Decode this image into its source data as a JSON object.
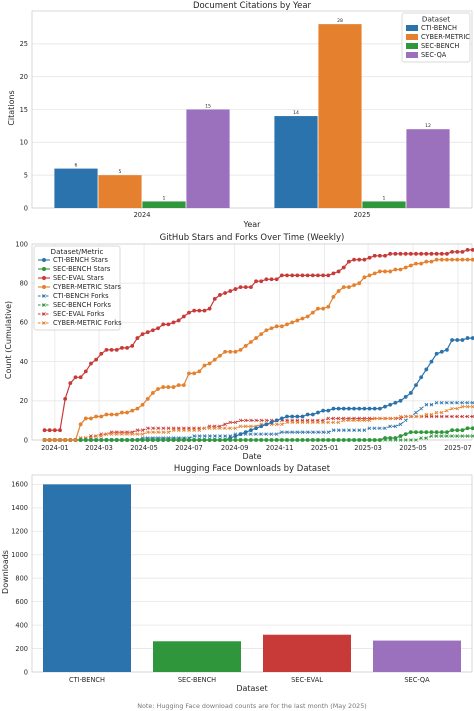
{
  "colors": {
    "blue": "#2b73ad",
    "orange": "#e5812e",
    "green": "#2f963c",
    "red": "#c83a37",
    "purple": "#9b70bd"
  },
  "chart_data": [
    {
      "type": "bar",
      "title": "Document Citations by Year",
      "xlabel": "Year",
      "ylabel": "Citations",
      "categories": [
        "2024",
        "2025"
      ],
      "ylim": [
        0,
        30
      ],
      "yticks": [
        0,
        5,
        10,
        15,
        20,
        25
      ],
      "legend": {
        "title": "Dataset",
        "placement": "top-right"
      },
      "series": [
        {
          "name": "CTI-BENCH",
          "color": "#2b73ad",
          "values": [
            6,
            14
          ]
        },
        {
          "name": "CYBER-METRIC",
          "color": "#e5812e",
          "values": [
            5,
            28
          ]
        },
        {
          "name": "SEC-BENCH",
          "color": "#2f963c",
          "values": [
            1,
            1
          ]
        },
        {
          "name": "SEC-QA",
          "color": "#9b70bd",
          "values": [
            15,
            12
          ]
        }
      ]
    },
    {
      "type": "line",
      "title": "GitHub Stars and Forks Over Time (Weekly)",
      "xlabel": "Date",
      "ylabel": "Count (Cumulative)",
      "ylim": [
        0,
        100
      ],
      "yticks": [
        0,
        20,
        40,
        60,
        80,
        100
      ],
      "xlim": [
        "2023-12-01",
        "2025-07-20"
      ],
      "xticks": [
        "2024-01",
        "2024-03",
        "2024-05",
        "2024-07",
        "2024-09",
        "2024-11",
        "2025-01",
        "2025-03",
        "2025-05",
        "2025-07"
      ],
      "x_start": "2023-12-18",
      "x_step_days": 7,
      "legend": {
        "title": "Dataset/Metric",
        "placement": "top-left"
      },
      "series": [
        {
          "name": "CTI-BENCH Stars",
          "color": "#2b73ad",
          "style": "solid-dot",
          "values": [
            0,
            0,
            0,
            0,
            0,
            0,
            0,
            0,
            0,
            0,
            0,
            0,
            0,
            0,
            0,
            0,
            0,
            0,
            0,
            0,
            0,
            0,
            0,
            0,
            0,
            0,
            0,
            0,
            0,
            0,
            0,
            0,
            0,
            0,
            0,
            0,
            1,
            2,
            3,
            4,
            5,
            6,
            7,
            8,
            9,
            10,
            11,
            12,
            12,
            12,
            12,
            13,
            13,
            14,
            15,
            15,
            16,
            16,
            16,
            16,
            16,
            16,
            16,
            16,
            16,
            16,
            17,
            18,
            19,
            20,
            22,
            24,
            28,
            32,
            36,
            40,
            44,
            45,
            46,
            51,
            51,
            51,
            52,
            52
          ]
        },
        {
          "name": "SEC-BENCH Stars",
          "color": "#2f963c",
          "style": "solid-dot",
          "values": [
            0,
            0,
            0,
            0,
            0,
            0,
            0,
            0,
            0,
            0,
            0,
            0,
            0,
            0,
            0,
            0,
            0,
            0,
            0,
            0,
            0,
            0,
            0,
            0,
            0,
            0,
            0,
            0,
            0,
            0,
            0,
            0,
            0,
            0,
            0,
            0,
            0,
            0,
            0,
            0,
            0,
            0,
            0,
            0,
            0,
            0,
            0,
            0,
            0,
            0,
            0,
            0,
            0,
            0,
            0,
            0,
            0,
            0,
            0,
            0,
            0,
            0,
            0,
            0,
            0,
            0,
            1,
            1,
            1,
            2,
            3,
            4,
            4,
            4,
            4,
            4,
            4,
            4,
            4,
            5,
            5,
            5,
            6,
            6
          ]
        },
        {
          "name": "SEC-EVAL Stars",
          "color": "#c83a37",
          "style": "solid-dot",
          "values": [
            5,
            5,
            5,
            5,
            21,
            29,
            32,
            32,
            35,
            39,
            41,
            44,
            46,
            46,
            46,
            47,
            47,
            48,
            52,
            54,
            55,
            56,
            57,
            59,
            59,
            60,
            61,
            63,
            65,
            66,
            66,
            66,
            67,
            72,
            74,
            75,
            76,
            77,
            78,
            78,
            78,
            81,
            81,
            82,
            82,
            82,
            84,
            84,
            84,
            84,
            84,
            84,
            84,
            84,
            84,
            84,
            85,
            86,
            88,
            91,
            92,
            92,
            92,
            93,
            94,
            94,
            94,
            95,
            95,
            95,
            95,
            95,
            95,
            95,
            95,
            95,
            95,
            95,
            95,
            96,
            96,
            96,
            97,
            97
          ]
        },
        {
          "name": "CYBER-METRIC Stars",
          "color": "#e5812e",
          "style": "solid-dot",
          "values": [
            0,
            0,
            0,
            0,
            0,
            0,
            0,
            8,
            11,
            11,
            12,
            12,
            13,
            13,
            13,
            14,
            14,
            15,
            16,
            18,
            21,
            24,
            26,
            27,
            27,
            27,
            28,
            28,
            34,
            34,
            35,
            38,
            39,
            41,
            43,
            45,
            45,
            45,
            46,
            48,
            50,
            52,
            54,
            56,
            57,
            58,
            58,
            59,
            60,
            61,
            62,
            63,
            65,
            67,
            67,
            68,
            73,
            76,
            78,
            78,
            79,
            80,
            83,
            84,
            85,
            86,
            86,
            86,
            87,
            87,
            88,
            89,
            90,
            90,
            91,
            91,
            92,
            92,
            92,
            92,
            92,
            92,
            92,
            92
          ]
        },
        {
          "name": "CTI-BENCH Forks",
          "color": "#2b73ad",
          "style": "dashed-x",
          "values": [
            0,
            0,
            0,
            0,
            0,
            0,
            0,
            0,
            0,
            0,
            0,
            0,
            0,
            0,
            0,
            0,
            0,
            0,
            0,
            1,
            1,
            1,
            1,
            1,
            1,
            1,
            1,
            1,
            1,
            2,
            2,
            2,
            2,
            2,
            2,
            2,
            2,
            3,
            3,
            3,
            3,
            3,
            3,
            3,
            3,
            3,
            4,
            4,
            4,
            4,
            4,
            4,
            4,
            4,
            4,
            4,
            5,
            5,
            5,
            5,
            5,
            5,
            5,
            6,
            6,
            6,
            6,
            7,
            7,
            8,
            10,
            12,
            14,
            16,
            18,
            18,
            19,
            19,
            19,
            19,
            19,
            19,
            19,
            19
          ]
        },
        {
          "name": "SEC-BENCH Forks",
          "color": "#2f963c",
          "style": "dashed-x",
          "values": [
            0,
            0,
            0,
            0,
            0,
            0,
            0,
            0,
            0,
            0,
            0,
            0,
            0,
            0,
            0,
            0,
            0,
            0,
            0,
            0,
            0,
            0,
            0,
            0,
            0,
            0,
            0,
            0,
            0,
            0,
            0,
            0,
            0,
            0,
            0,
            0,
            0,
            0,
            0,
            0,
            0,
            0,
            0,
            0,
            0,
            0,
            0,
            0,
            0,
            0,
            0,
            0,
            0,
            0,
            0,
            0,
            0,
            0,
            0,
            0,
            0,
            0,
            0,
            0,
            0,
            0,
            0,
            0,
            0,
            0,
            0,
            0,
            0,
            1,
            1,
            2,
            2,
            2,
            2,
            2,
            2,
            2,
            2,
            2
          ]
        },
        {
          "name": "SEC-EVAL Forks",
          "color": "#c83a37",
          "style": "dashed-x",
          "values": [
            0,
            0,
            0,
            0,
            0,
            0,
            0,
            1,
            1,
            2,
            2,
            3,
            3,
            4,
            4,
            4,
            4,
            4,
            5,
            5,
            6,
            6,
            6,
            6,
            6,
            6,
            6,
            6,
            6,
            6,
            6,
            6,
            7,
            7,
            7,
            8,
            9,
            9,
            10,
            10,
            10,
            10,
            10,
            10,
            10,
            10,
            10,
            10,
            10,
            10,
            10,
            10,
            10,
            10,
            10,
            11,
            11,
            11,
            11,
            11,
            11,
            11,
            11,
            11,
            11,
            11,
            11,
            11,
            11,
            11,
            12,
            12,
            12,
            12,
            12,
            12,
            12,
            12,
            12,
            12,
            12,
            12,
            12,
            12
          ]
        },
        {
          "name": "CYBER-METRIC Forks",
          "color": "#e5812e",
          "style": "dashed-x",
          "values": [
            0,
            0,
            0,
            0,
            0,
            0,
            0,
            1,
            1,
            1,
            2,
            2,
            3,
            3,
            3,
            3,
            3,
            3,
            3,
            3,
            4,
            4,
            4,
            4,
            4,
            5,
            5,
            5,
            5,
            5,
            5,
            6,
            6,
            6,
            6,
            6,
            6,
            6,
            7,
            7,
            7,
            7,
            8,
            8,
            8,
            8,
            8,
            9,
            9,
            9,
            9,
            9,
            9,
            9,
            9,
            9,
            9,
            9,
            10,
            10,
            10,
            10,
            10,
            10,
            11,
            11,
            11,
            11,
            11,
            12,
            12,
            12,
            12,
            12,
            13,
            13,
            14,
            14,
            15,
            16,
            16,
            17,
            17,
            17
          ]
        }
      ]
    },
    {
      "type": "bar",
      "title": "Hugging Face Downloads by Dataset",
      "xlabel": "Dataset",
      "ylabel": "Downloads",
      "categories": [
        "CTI-BENCH",
        "SEC-BENCH",
        "SEC-EVAL",
        "SEC-QA"
      ],
      "values": [
        1600,
        262,
        318,
        268
      ],
      "colors": [
        "#2b73ad",
        "#2f963c",
        "#c83a37",
        "#9b70bd"
      ],
      "ylim": [
        0,
        1680
      ],
      "yticks": [
        0,
        200,
        400,
        600,
        800,
        1000,
        1200,
        1400,
        1600
      ]
    }
  ],
  "footnote": "Note: Hugging Face download counts are for the last month (May 2025)"
}
